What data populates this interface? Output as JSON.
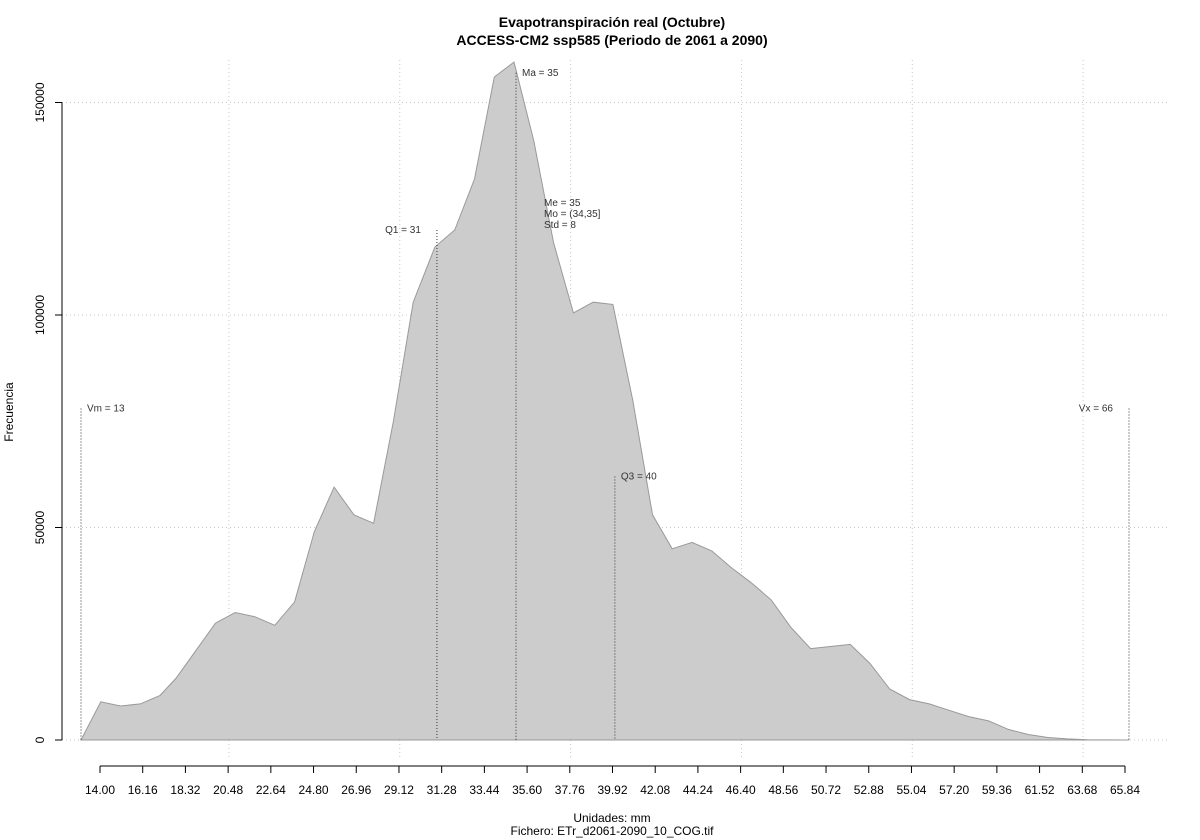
{
  "chart_data": {
    "type": "area",
    "title": "Evapotranspiración real (Octubre)",
    "subtitle": "ACCESS-CM2 ssp585 (Periodo de 2061 a 2090)",
    "xlabel": "Unidades: mm",
    "source": "Fichero: ETr_d2061-2090_10_COG.tif",
    "ylabel": "Frecuencia",
    "xlim": [
      13,
      66
    ],
    "ylim": [
      0,
      160000
    ],
    "x_ticks": [
      "14.00",
      "16.16",
      "18.32",
      "20.48",
      "22.64",
      "24.80",
      "26.96",
      "29.12",
      "31.28",
      "33.44",
      "35.60",
      "37.76",
      "39.92",
      "42.08",
      "44.24",
      "46.40",
      "48.56",
      "50.72",
      "52.88",
      "55.04",
      "57.20",
      "59.36",
      "61.52",
      "63.68",
      "65.84"
    ],
    "y_ticks": [
      0,
      50000,
      100000,
      150000
    ],
    "grid": true,
    "fill_color": "#cccccc",
    "line_color": "#999999",
    "series": [
      {
        "x": [
          13.0,
          14.0,
          15.0,
          16.0,
          17.0,
          17.8,
          18.8,
          19.8,
          20.8,
          21.8,
          22.8,
          23.8,
          24.8,
          25.8,
          26.8,
          27.8,
          28.8,
          29.8,
          30.9,
          31.9,
          32.9,
          33.9,
          34.9,
          35.9,
          36.9,
          37.9,
          38.9,
          39.9,
          40.9,
          41.9,
          42.9,
          43.9,
          44.9,
          45.9,
          46.9,
          47.9,
          48.9,
          49.9,
          50.9,
          51.9,
          52.9,
          53.9,
          54.9,
          55.9,
          56.9,
          57.9,
          58.9,
          59.9,
          60.9,
          61.9,
          62.9,
          63.9,
          64.9,
          66.0
        ],
        "y": [
          0,
          9000,
          8000,
          8500,
          10500,
          14500,
          21000,
          27500,
          30000,
          29000,
          27000,
          32500,
          49000,
          59500,
          53000,
          51000,
          75000,
          103000,
          116000,
          120000,
          132000,
          156000,
          159500,
          141000,
          117000,
          100500,
          103000,
          102500,
          80000,
          53000,
          45000,
          46500,
          44500,
          40500,
          37000,
          33000,
          26500,
          21500,
          22000,
          22500,
          18000,
          12000,
          9500,
          8500,
          7000,
          5500,
          4500,
          2500,
          1300,
          600,
          250,
          80,
          20,
          0
        ]
      }
    ],
    "markers": [
      {
        "label": "Vm = 13",
        "x": 13,
        "top": 78000,
        "align": "right"
      },
      {
        "label": "Q1 = 31",
        "x": 31,
        "top": 120000,
        "align": "left"
      },
      {
        "label": "Ma = 35",
        "x": 35,
        "top": 157000,
        "align": "right"
      },
      {
        "label": "Q3 = 40",
        "x": 40,
        "top": 62000,
        "align": "right"
      },
      {
        "label": "Vx = 66",
        "x": 66,
        "top": 78000,
        "align": "left"
      }
    ],
    "stats_block": [
      "Me = 35",
      "Mo = (34,35]",
      "Std = 8"
    ]
  }
}
